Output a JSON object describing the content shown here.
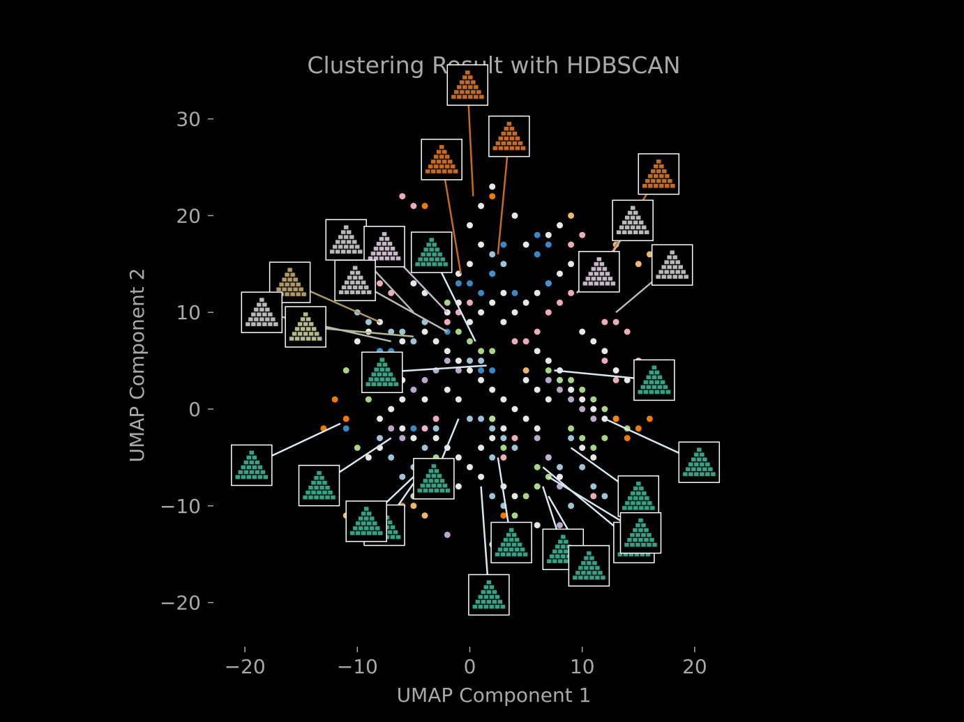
{
  "chart_data": {
    "type": "scatter",
    "title": "Clustering Result with HDBSCAN",
    "xlabel": "UMAP Component 1",
    "ylabel": "UMAP Component 2",
    "xlim": [
      -22.5,
      22
    ],
    "ylim": [
      -24,
      33
    ],
    "x_ticks": [
      -20,
      -10,
      0,
      10,
      20
    ],
    "y_ticks": [
      -20,
      -10,
      0,
      10,
      20,
      30
    ],
    "x_tick_labels": [
      "−20",
      "−10",
      "0",
      "10",
      "20"
    ],
    "y_tick_labels": [
      "−20",
      "−10",
      "0",
      "10",
      "20",
      "30"
    ],
    "grid": false,
    "legend": "none",
    "background": "#000000",
    "text_color": "#a9a9a9",
    "cluster_colors": [
      "#f4f4f4",
      "#a6cee3",
      "#1f78b4",
      "#b2df8a",
      "#fbb4c4",
      "#fdbf6f",
      "#ff7f00",
      "#c5b0d5",
      "#3a8fd1"
    ],
    "series": [
      {
        "color": "#f4f4f4",
        "points": [
          [
            -6,
            7
          ],
          [
            -4,
            8
          ],
          [
            -3,
            7
          ],
          [
            -2,
            6
          ],
          [
            -1,
            5
          ],
          [
            0,
            4
          ],
          [
            1,
            3
          ],
          [
            2,
            2
          ],
          [
            3,
            1
          ],
          [
            4,
            0
          ],
          [
            5,
            -1
          ],
          [
            6,
            -2
          ],
          [
            -8,
            -1
          ],
          [
            -7,
            0
          ],
          [
            -6,
            1
          ],
          [
            -3,
            -3
          ],
          [
            -2,
            -4
          ],
          [
            -1,
            -5
          ],
          [
            0,
            -6
          ],
          [
            1,
            -4
          ],
          [
            2,
            -3
          ],
          [
            3,
            -8
          ],
          [
            4,
            -9
          ],
          [
            3,
            9
          ],
          [
            4,
            10
          ],
          [
            5,
            11
          ],
          [
            6,
            12
          ],
          [
            7,
            13
          ],
          [
            8,
            14
          ],
          [
            9,
            15
          ],
          [
            10,
            8
          ],
          [
            11,
            7
          ],
          [
            12,
            6
          ],
          [
            9,
            2
          ],
          [
            10,
            1
          ],
          [
            11,
            0
          ],
          [
            12,
            -1
          ],
          [
            -1,
            14
          ],
          [
            0,
            15
          ],
          [
            1,
            17
          ],
          [
            0,
            19
          ],
          [
            1,
            21
          ],
          [
            2,
            23
          ],
          [
            -1,
            11
          ],
          [
            -2,
            10
          ],
          [
            -4,
            12
          ],
          [
            -5,
            13
          ],
          [
            -8,
            9
          ],
          [
            -9,
            8
          ],
          [
            -10,
            7
          ],
          [
            -7,
            4
          ],
          [
            -6,
            3
          ],
          [
            -4,
            1
          ],
          [
            6,
            6
          ],
          [
            7,
            5
          ],
          [
            8,
            4
          ],
          [
            5,
            3
          ],
          [
            6,
            2
          ],
          [
            7,
            1
          ],
          [
            2,
            -1
          ],
          [
            3,
            -2
          ],
          [
            1,
            -7
          ],
          [
            -1,
            -8
          ],
          [
            -3,
            -8
          ],
          [
            -5,
            -9
          ],
          [
            6,
            -12
          ],
          [
            8,
            -7
          ],
          [
            5,
            17
          ],
          [
            7,
            18
          ],
          [
            8,
            19
          ],
          [
            4,
            20
          ],
          [
            2,
            11
          ],
          [
            3,
            12
          ],
          [
            -6,
            -2
          ],
          [
            -5,
            -3
          ],
          [
            -8,
            -4
          ],
          [
            -9,
            -5
          ],
          [
            10,
            -4
          ],
          [
            11,
            -5
          ],
          [
            0,
            9
          ],
          [
            1,
            10
          ],
          [
            -2,
            2
          ],
          [
            -1,
            1
          ],
          [
            13,
            4
          ],
          [
            14,
            3
          ]
        ]
      },
      {
        "color": "#a6cee3",
        "points": [
          [
            -8,
            -3
          ],
          [
            -7,
            -5
          ],
          [
            -6,
            -7
          ],
          [
            -5,
            -6
          ],
          [
            -4,
            -4
          ],
          [
            -3,
            -2
          ],
          [
            0,
            -1
          ],
          [
            1,
            -1
          ],
          [
            2,
            -2
          ],
          [
            3,
            -3
          ],
          [
            4,
            -4
          ],
          [
            2,
            -5
          ],
          [
            3,
            -10
          ],
          [
            2,
            -9
          ],
          [
            7,
            -5
          ],
          [
            8,
            -6
          ],
          [
            9,
            -3
          ],
          [
            10,
            -6
          ],
          [
            11,
            -8
          ],
          [
            -7,
            8
          ],
          [
            -6,
            8
          ],
          [
            -5,
            7
          ],
          [
            -8,
            6
          ],
          [
            2,
            16
          ],
          [
            3,
            15
          ],
          [
            2,
            14
          ],
          [
            1,
            5
          ],
          [
            0,
            5
          ],
          [
            -9,
            9
          ],
          [
            -10,
            10
          ],
          [
            -4,
            9
          ],
          [
            12,
            -9
          ],
          [
            9,
            -10
          ]
        ]
      },
      {
        "color": "#3a8fd1",
        "points": [
          [
            -8,
            6
          ],
          [
            -7,
            6
          ],
          [
            -2,
            8
          ],
          [
            -1,
            13
          ],
          [
            0,
            13
          ],
          [
            1,
            12
          ],
          [
            2,
            14
          ],
          [
            6,
            18
          ],
          [
            7,
            17
          ],
          [
            6,
            16
          ],
          [
            3,
            17
          ],
          [
            1,
            4
          ],
          [
            2,
            4
          ],
          [
            -5,
            -2
          ],
          [
            -4,
            -2
          ],
          [
            7,
            13
          ],
          [
            4,
            12
          ],
          [
            6,
            -8
          ],
          [
            -11,
            -2
          ],
          [
            8,
            3
          ]
        ]
      },
      {
        "color": "#b2df8a",
        "points": [
          [
            1,
            6
          ],
          [
            2,
            6
          ],
          [
            0,
            7
          ],
          [
            -1,
            8
          ],
          [
            -2,
            11
          ],
          [
            7,
            4
          ],
          [
            8,
            3
          ],
          [
            9,
            3
          ],
          [
            10,
            2
          ],
          [
            11,
            1
          ],
          [
            12,
            0
          ],
          [
            13,
            -1
          ],
          [
            14,
            -2
          ],
          [
            10,
            -3
          ],
          [
            11,
            -4
          ],
          [
            7,
            -7
          ],
          [
            6,
            -8
          ],
          [
            5,
            -9
          ],
          [
            6,
            -6
          ],
          [
            2,
            -1
          ],
          [
            3,
            -4
          ],
          [
            -3,
            -5
          ],
          [
            -4,
            -6
          ],
          [
            -10,
            -4
          ],
          [
            -11,
            4
          ],
          [
            -9,
            1
          ],
          [
            -5,
            -9
          ],
          [
            12,
            -3
          ],
          [
            9,
            -2
          ],
          [
            2,
            -14
          ],
          [
            4,
            -11
          ]
        ]
      },
      {
        "color": "#fbb4c4",
        "points": [
          [
            -2,
            9
          ],
          [
            -1,
            10
          ],
          [
            0,
            11
          ],
          [
            4,
            7
          ],
          [
            5,
            7
          ],
          [
            6,
            8
          ],
          [
            7,
            10
          ],
          [
            8,
            11
          ],
          [
            9,
            12
          ],
          [
            10,
            13
          ],
          [
            11,
            14
          ],
          [
            12,
            9
          ],
          [
            13,
            9
          ],
          [
            14,
            8
          ],
          [
            15,
            5
          ],
          [
            16,
            4
          ],
          [
            12,
            5
          ],
          [
            13,
            3
          ],
          [
            -8,
            13
          ],
          [
            -7,
            12
          ],
          [
            -4,
            -2
          ],
          [
            -3,
            -1
          ],
          [
            4,
            -3
          ],
          [
            3,
            -5
          ],
          [
            11,
            -9
          ],
          [
            -5,
            21
          ],
          [
            -6,
            22
          ],
          [
            9,
            17
          ],
          [
            10,
            18
          ]
        ]
      },
      {
        "color": "#fdbf6f",
        "points": [
          [
            10,
            13
          ],
          [
            11,
            14
          ],
          [
            12,
            15
          ],
          [
            13,
            17
          ],
          [
            14,
            18
          ],
          [
            15,
            15
          ],
          [
            16,
            16
          ],
          [
            -5,
            -10
          ],
          [
            -4,
            -11
          ],
          [
            9,
            20
          ],
          [
            -4,
            15
          ],
          [
            5,
            4
          ],
          [
            -11,
            -11
          ]
        ]
      },
      {
        "color": "#ff7f00",
        "points": [
          [
            -12,
            1
          ],
          [
            -11,
            -1
          ],
          [
            2,
            22
          ],
          [
            -4,
            21
          ],
          [
            13,
            -1
          ],
          [
            14,
            -3
          ],
          [
            15,
            -2
          ],
          [
            16,
            -1
          ],
          [
            -6,
            -10
          ],
          [
            -4,
            -8
          ],
          [
            3,
            -11
          ],
          [
            -8,
            -12
          ],
          [
            -13,
            -2
          ],
          [
            -2,
            17
          ]
        ]
      },
      {
        "color": "#c5b0d5",
        "points": [
          [
            7,
            3
          ],
          [
            8,
            2
          ],
          [
            9,
            1
          ],
          [
            10,
            0
          ],
          [
            11,
            -1
          ],
          [
            6,
            -3
          ],
          [
            7,
            -5
          ],
          [
            8,
            -8
          ],
          [
            -5,
            2
          ],
          [
            -4,
            3
          ],
          [
            -3,
            4
          ],
          [
            -2,
            5
          ],
          [
            -1,
            4
          ],
          [
            -7,
            -2
          ],
          [
            -6,
            -3
          ],
          [
            5,
            -12
          ],
          [
            4,
            -14
          ],
          [
            -2,
            -13
          ],
          [
            8,
            -12
          ]
        ]
      }
    ],
    "thumbnail_tints": {
      "orange": "#c96a1c",
      "gray": "#b9b9b9",
      "khaki": "#b09a62",
      "sage": "#b6bb8a",
      "lavender": "#c7b8c9",
      "teal": "#2fa585"
    },
    "thumbnails": [
      {
        "tint": "orange",
        "at": [
          -0.2,
          33.5
        ],
        "target": [
          0.3,
          22
        ]
      },
      {
        "tint": "orange",
        "at": [
          3.5,
          28.2
        ],
        "target": [
          2.5,
          16
        ]
      },
      {
        "tint": "orange",
        "at": [
          -2.5,
          25.8
        ],
        "target": [
          -0.8,
          14
        ]
      },
      {
        "tint": "orange",
        "at": [
          16.8,
          24.3
        ],
        "target": [
          11.5,
          14
        ]
      },
      {
        "tint": "gray",
        "at": [
          14.5,
          19.5
        ],
        "target": [
          11,
          13
        ]
      },
      {
        "tint": "gray",
        "at": [
          -11,
          17.5
        ],
        "target": [
          -5,
          10
        ]
      },
      {
        "tint": "lavender",
        "at": [
          -7.6,
          16.8
        ],
        "target": [
          -2,
          10
        ]
      },
      {
        "tint": "teal",
        "at": [
          -3.4,
          16.2
        ],
        "target": [
          0.5,
          7
        ]
      },
      {
        "tint": "gray",
        "at": [
          18,
          14.9
        ],
        "target": [
          13,
          10
        ]
      },
      {
        "tint": "lavender",
        "at": [
          11.5,
          14.2
        ],
        "target": [
          9.5,
          12
        ]
      },
      {
        "tint": "khaki",
        "at": [
          -16,
          13.1
        ],
        "target": [
          -8,
          9
        ]
      },
      {
        "tint": "gray",
        "at": [
          -10.2,
          13.3
        ],
        "target": [
          -2,
          8
        ]
      },
      {
        "tint": "sage",
        "at": [
          -14.6,
          8.5
        ],
        "target": [
          -5,
          7.5
        ]
      },
      {
        "tint": "gray",
        "at": [
          -18.5,
          10
        ],
        "target": [
          -7,
          7
        ]
      },
      {
        "tint": "teal",
        "at": [
          -7.8,
          3.8
        ],
        "target": [
          1.5,
          4.5
        ]
      },
      {
        "tint": "teal",
        "at": [
          16.4,
          3
        ],
        "target": [
          7.5,
          4
        ]
      },
      {
        "tint": "teal",
        "at": [
          20.4,
          -5.5
        ],
        "target": [
          12,
          -1
        ]
      },
      {
        "tint": "teal",
        "at": [
          -19.4,
          -5.8
        ],
        "target": [
          -11.5,
          -1.5
        ]
      },
      {
        "tint": "teal",
        "at": [
          -13.4,
          -7.9
        ],
        "target": [
          -7,
          -3
        ]
      },
      {
        "tint": "teal",
        "at": [
          -3.2,
          -7.2
        ],
        "target": [
          -1,
          -1
        ]
      },
      {
        "tint": "teal",
        "at": [
          15,
          -9
        ],
        "target": [
          9,
          -4
        ]
      },
      {
        "tint": "teal",
        "at": [
          -7.6,
          -12
        ],
        "target": [
          -4,
          -6
        ]
      },
      {
        "tint": "teal",
        "at": [
          -9.2,
          -11.6
        ],
        "target": [
          -5,
          -7
        ]
      },
      {
        "tint": "teal",
        "at": [
          3.7,
          -13.8
        ],
        "target": [
          2.5,
          -5
        ]
      },
      {
        "tint": "teal",
        "at": [
          14.6,
          -13.8
        ],
        "target": [
          6.5,
          -6
        ]
      },
      {
        "tint": "teal",
        "at": [
          15.2,
          -12.8
        ],
        "target": [
          7,
          -7
        ]
      },
      {
        "tint": "teal",
        "at": [
          8.3,
          -14.5
        ],
        "target": [
          6.5,
          -8
        ]
      },
      {
        "tint": "teal",
        "at": [
          10.6,
          -16.2
        ],
        "target": [
          7,
          -9
        ]
      },
      {
        "tint": "teal",
        "at": [
          1.7,
          -19.2
        ],
        "target": [
          1,
          -8
        ]
      }
    ]
  }
}
